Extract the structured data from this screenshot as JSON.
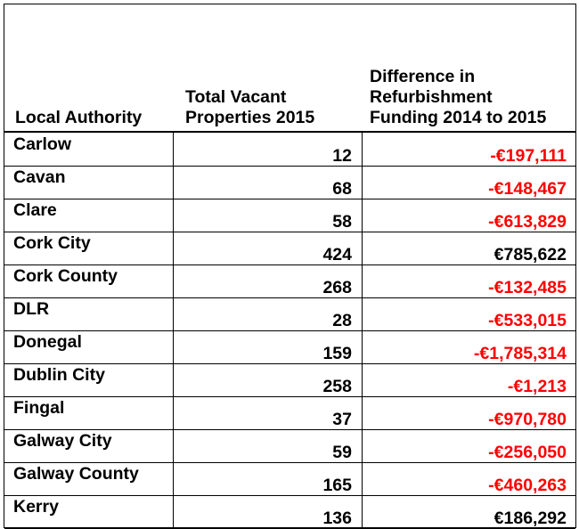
{
  "headers": {
    "authority": "Local Authority",
    "vacant_line1": "Total Vacant",
    "vacant_line2": "Properties 2015",
    "diff_line1": "Difference in",
    "diff_line2": "Refurbishment",
    "diff_line3": "Funding 2014 to 2015"
  },
  "colors": {
    "negative": "#ff0000",
    "positive": "#000000"
  },
  "rows": [
    {
      "name": "Carlow",
      "vacant": "12",
      "diff": "-€197,111",
      "negative": true
    },
    {
      "name": "Cavan",
      "vacant": "68",
      "diff": "-€148,467",
      "negative": true
    },
    {
      "name": "Clare",
      "vacant": "58",
      "diff": "-€613,829",
      "negative": true
    },
    {
      "name": "Cork City",
      "vacant": "424",
      "diff": "€785,622",
      "negative": false
    },
    {
      "name": "Cork County",
      "vacant": "268",
      "diff": "-€132,485",
      "negative": true
    },
    {
      "name": "DLR",
      "vacant": "28",
      "diff": "-€533,015",
      "negative": true
    },
    {
      "name": "Donegal",
      "vacant": "159",
      "diff": "-€1,785,314",
      "negative": true
    },
    {
      "name": "Dublin City",
      "vacant": "258",
      "diff": "-€1,213",
      "negative": true
    },
    {
      "name": "Fingal",
      "vacant": "37",
      "diff": "-€970,780",
      "negative": true
    },
    {
      "name": "Galway City",
      "vacant": "59",
      "diff": "-€256,050",
      "negative": true
    },
    {
      "name": "Galway County",
      "vacant": "165",
      "diff": "-€460,263",
      "negative": true
    },
    {
      "name": "Kerry",
      "vacant": "136",
      "diff": "€186,292",
      "negative": false
    }
  ]
}
